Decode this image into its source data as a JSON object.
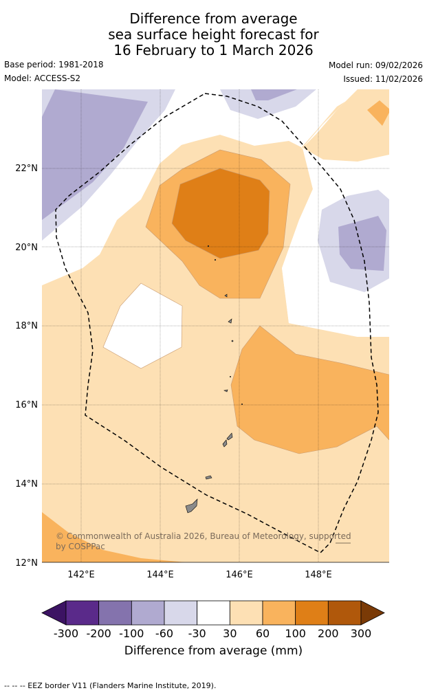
{
  "title": {
    "line1": "Difference from average",
    "line2": "sea surface height forecast for",
    "line3": "16 February to 1 March 2026"
  },
  "meta": {
    "base_period": "Base period: 1981-2018",
    "model": "Model: ACCESS-S2",
    "model_run": "Model run: 09/02/2026",
    "issued": "Issued: 11/02/2026"
  },
  "map": {
    "lat_labels": [
      "22°N",
      "20°N",
      "18°N",
      "16°N",
      "14°N",
      "12°N"
    ],
    "lon_labels": [
      "142°E",
      "144°E",
      "146°E",
      "148°E"
    ],
    "copyright_line1": "© Commonwealth of Australia 2026, Bureau of Meteorology, supported",
    "copyright_line2": "by COSPPac"
  },
  "colorbar": {
    "tick_labels": [
      "-300",
      "-200",
      "-100",
      "-60",
      "-30",
      "30",
      "60",
      "100",
      "200",
      "300"
    ],
    "label": "Difference from average (mm)",
    "colors": [
      "#3c1363",
      "#5a2a8a",
      "#8473ad",
      "#b0aad0",
      "#d8d8ea",
      "#ffffff",
      "#fde0b4",
      "#f9b35d",
      "#df7f17",
      "#b0580b",
      "#7a3a06"
    ]
  },
  "footer": {
    "text": "--  --  -- EEZ border V11 (Flanders Marine Institute, 2019)."
  }
}
